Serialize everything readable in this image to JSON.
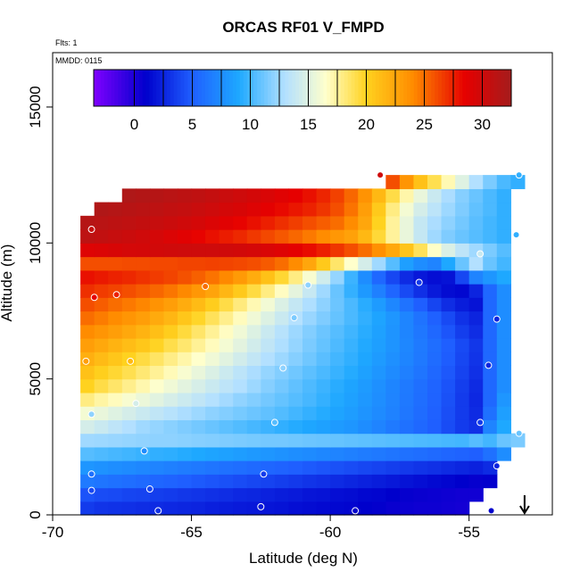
{
  "chart_data": {
    "type": "heatmap",
    "title": "ORCAS RF01 V_FMPD",
    "annotations": [
      "Flts: 1",
      "MMDD: 0115"
    ],
    "xlabel": "Latitude (deg N)",
    "ylabel": "Altitude (m)",
    "xlim": [
      -70,
      -52
    ],
    "ylim": [
      0,
      17000
    ],
    "x_ticks": [
      -70,
      -65,
      -60,
      -55
    ],
    "x_tick_labels": [
      "-70",
      "-65",
      "-60",
      "-55"
    ],
    "y_ticks": [
      0,
      5000,
      10000,
      15000
    ],
    "y_tick_labels": [
      "0",
      "5000",
      "10000",
      "15000"
    ],
    "colorbar": {
      "range": [
        -3.5,
        32.5
      ],
      "ticks": [
        0,
        5,
        10,
        15,
        20,
        25,
        30
      ],
      "tick_labels": [
        "0",
        "5",
        "10",
        "15",
        "20",
        "25",
        "30"
      ],
      "colors": [
        "#8000ff",
        "#0000cc",
        "#1f5fff",
        "#1ea8ff",
        "#b3e0ff",
        "#ffffcc",
        "#ffd21f",
        "#ff8c00",
        "#e60000",
        "#a51c1c"
      ],
      "color_positions": [
        -3.5,
        1.0,
        5.0,
        9.0,
        13.0,
        16.5,
        20.0,
        24.0,
        28.5,
        32.5
      ]
    },
    "grid_columns": [
      -68.75,
      -68.25,
      -67.75,
      -67.25,
      -66.75,
      -66.25,
      -65.75,
      -65.25,
      -64.75,
      -64.25,
      -63.75,
      -63.25,
      -62.75,
      -62.25,
      -61.75,
      -61.25,
      -60.75,
      -60.25,
      -59.75,
      -59.25,
      -58.75,
      -58.25,
      -57.75,
      -57.25,
      -56.75,
      -56.25,
      -55.75,
      -55.25,
      -54.75,
      -54.25,
      -53.75,
      -53.25
    ],
    "grid_rows": [
      250,
      750,
      1250,
      1750,
      2250,
      2750,
      3250,
      3750,
      4250,
      4750,
      5250,
      5750,
      6250,
      6750,
      7250,
      7750,
      8250,
      8750,
      9250,
      9750,
      10250,
      10750,
      11250,
      11750,
      12250
    ],
    "values": [
      [
        3.5,
        3.2,
        3.1,
        3.0,
        2.9,
        2.8,
        2.7,
        2.6,
        2.5,
        2.3,
        2.2,
        2.1,
        2.0,
        1.9,
        1.8,
        1.6,
        1.5,
        1.4,
        1.3,
        1.2,
        1.0,
        0.9,
        0.7,
        0.6,
        0.5,
        0.5,
        0.4,
        0.3,
        null,
        null,
        null,
        null
      ],
      [
        4.5,
        4.2,
        4.1,
        3.9,
        3.8,
        3.6,
        3.5,
        3.3,
        3.2,
        3.0,
        2.9,
        2.7,
        2.6,
        2.4,
        2.2,
        2.1,
        1.9,
        1.8,
        1.6,
        1.5,
        1.3,
        1.2,
        1.0,
        0.8,
        0.7,
        0.6,
        0.5,
        0.4,
        0.4,
        null,
        null,
        null
      ],
      [
        6.5,
        6.2,
        6.0,
        5.8,
        5.6,
        5.4,
        5.2,
        5.0,
        4.8,
        4.6,
        4.4,
        4.2,
        4.0,
        3.8,
        3.6,
        3.4,
        3.2,
        3.0,
        2.8,
        2.6,
        2.4,
        2.2,
        2.0,
        1.8,
        1.6,
        1.4,
        1.2,
        1.0,
        0.8,
        0.9,
        null,
        null
      ],
      [
        8.0,
        7.8,
        7.6,
        7.4,
        7.2,
        7.0,
        6.8,
        6.6,
        6.4,
        6.2,
        6.0,
        5.8,
        5.6,
        5.4,
        5.2,
        5.0,
        4.8,
        4.6,
        4.4,
        4.2,
        4.0,
        3.8,
        3.6,
        3.4,
        3.2,
        3.0,
        2.8,
        2.6,
        2.4,
        2.8,
        null,
        null
      ],
      [
        10.5,
        10.3,
        10.1,
        9.9,
        9.7,
        9.5,
        9.4,
        9.2,
        9.0,
        8.8,
        8.6,
        8.4,
        8.2,
        8.0,
        7.8,
        7.6,
        7.4,
        7.2,
        7.0,
        6.8,
        6.6,
        6.4,
        6.2,
        6.0,
        5.8,
        5.6,
        5.4,
        5.2,
        5.0,
        6.0,
        7.5,
        null
      ],
      [
        12.5,
        12.4,
        12.3,
        12.2,
        12.1,
        12.0,
        12.0,
        11.9,
        11.8,
        11.7,
        11.6,
        11.5,
        11.4,
        11.3,
        11.3,
        11.2,
        11.1,
        11.0,
        10.9,
        10.8,
        10.7,
        10.6,
        10.5,
        10.4,
        10.3,
        10.2,
        10.1,
        10.0,
        10.5,
        10.0,
        11.0,
        11.5
      ],
      [
        14.5,
        14.0,
        13.5,
        13.0,
        12.5,
        12.2,
        11.9,
        11.6,
        11.3,
        11.0,
        10.7,
        10.4,
        10.1,
        9.8,
        9.5,
        9.2,
        8.9,
        8.6,
        8.3,
        8.0,
        7.5,
        7.0,
        6.5,
        6.0,
        5.5,
        5.0,
        4.2,
        3.5,
        3.0,
        7.0,
        9.0,
        null
      ],
      [
        16.0,
        15.5,
        15.0,
        14.5,
        14.0,
        13.6,
        13.2,
        12.8,
        12.4,
        12.0,
        11.7,
        11.4,
        11.1,
        10.8,
        10.4,
        10.0,
        9.6,
        9.2,
        8.8,
        8.4,
        7.9,
        7.4,
        6.9,
        6.3,
        5.7,
        5.1,
        4.3,
        3.5,
        2.8,
        6.0,
        8.5,
        null
      ],
      [
        18.0,
        17.3,
        16.8,
        16.2,
        15.6,
        15.1,
        14.6,
        14.1,
        13.6,
        13.1,
        12.6,
        12.1,
        11.7,
        11.3,
        10.9,
        10.5,
        10.1,
        9.6,
        9.1,
        8.6,
        8.1,
        7.6,
        7.0,
        6.4,
        5.8,
        5.2,
        4.4,
        3.5,
        2.7,
        5.5,
        8.0,
        null
      ],
      [
        20.0,
        19.2,
        18.5,
        17.8,
        17.1,
        16.4,
        15.8,
        15.2,
        14.6,
        14.0,
        13.5,
        13.0,
        12.4,
        11.8,
        11.3,
        10.8,
        10.3,
        9.8,
        9.3,
        8.8,
        8.3,
        7.7,
        7.1,
        6.5,
        5.9,
        5.3,
        4.5,
        3.6,
        2.8,
        5.5,
        7.5,
        null
      ],
      [
        21.0,
        20.2,
        19.6,
        19.0,
        18.3,
        17.6,
        16.9,
        16.2,
        15.5,
        14.8,
        14.1,
        13.4,
        12.8,
        12.2,
        11.7,
        11.2,
        10.7,
        10.2,
        9.7,
        9.2,
        8.6,
        8.0,
        7.4,
        6.8,
        6.2,
        5.5,
        4.7,
        3.8,
        3.0,
        5.5,
        7.5,
        null
      ],
      [
        22.0,
        21.3,
        20.7,
        20.0,
        19.3,
        18.6,
        17.9,
        17.2,
        16.5,
        15.8,
        15.1,
        14.4,
        13.7,
        13.0,
        12.4,
        11.8,
        11.2,
        10.6,
        10.0,
        9.5,
        8.9,
        8.3,
        7.7,
        7.1,
        6.4,
        5.7,
        4.9,
        4.0,
        3.2,
        5.5,
        7.5,
        null
      ],
      [
        23.0,
        22.4,
        21.8,
        21.2,
        20.6,
        19.9,
        19.1,
        18.4,
        17.6,
        16.8,
        16.0,
        15.2,
        14.4,
        13.6,
        12.9,
        12.2,
        11.5,
        10.9,
        10.3,
        9.7,
        9.1,
        8.5,
        7.9,
        7.2,
        6.5,
        5.8,
        5.0,
        4.1,
        3.3,
        5.5,
        7.5,
        null
      ],
      [
        24.0,
        23.5,
        23.0,
        22.4,
        21.8,
        21.1,
        20.3,
        19.4,
        18.5,
        17.6,
        16.7,
        15.8,
        14.9,
        14.0,
        13.2,
        12.4,
        11.7,
        11.1,
        10.5,
        9.9,
        9.3,
        8.6,
        7.9,
        7.1,
        6.3,
        5.5,
        4.6,
        3.6,
        2.9,
        5.5,
        7.5,
        null
      ],
      [
        25.0,
        24.5,
        24.0,
        23.5,
        23.0,
        22.3,
        21.6,
        20.7,
        19.8,
        18.8,
        17.8,
        16.8,
        15.8,
        14.9,
        14.0,
        13.1,
        12.3,
        11.6,
        10.9,
        10.2,
        9.5,
        8.8,
        8.0,
        7.1,
        6.1,
        5.1,
        4.1,
        3.1,
        2.5,
        5.5,
        7.5,
        null
      ],
      [
        26.0,
        25.5,
        25.0,
        24.6,
        24.2,
        23.6,
        23.0,
        22.2,
        21.3,
        20.3,
        19.2,
        18.1,
        17.0,
        15.9,
        14.8,
        13.8,
        12.9,
        12.0,
        11.1,
        10.2,
        9.3,
        8.3,
        7.2,
        6.1,
        5.0,
        3.9,
        2.9,
        2.2,
        1.8,
        5.5,
        7.5,
        null
      ],
      [
        27.0,
        26.6,
        26.3,
        26.0,
        25.6,
        25.2,
        24.7,
        24.1,
        23.4,
        22.6,
        21.6,
        20.5,
        19.3,
        18.0,
        16.7,
        15.3,
        13.9,
        12.5,
        11.0,
        9.6,
        8.2,
        6.8,
        5.4,
        4.1,
        3.0,
        2.1,
        1.5,
        1.3,
        2.5,
        5.5,
        7.5,
        null
      ],
      [
        28.0,
        27.7,
        27.4,
        27.2,
        26.9,
        26.6,
        26.3,
        25.9,
        25.4,
        24.8,
        24.1,
        23.2,
        22.2,
        21.0,
        19.6,
        18.0,
        16.2,
        14.3,
        12.2,
        9.8,
        7.5,
        5.5,
        4.0,
        2.8,
        2.0,
        1.6,
        1.8,
        4.0,
        7.0,
        8.0,
        9.0,
        null
      ],
      [
        26.0,
        26.0,
        26.0,
        26.1,
        26.1,
        26.2,
        26.2,
        26.3,
        26.3,
        26.4,
        26.3,
        26.2,
        26.0,
        25.6,
        25.0,
        24.0,
        22.5,
        20.5,
        18.5,
        16.5,
        14.5,
        12.5,
        10.5,
        8.5,
        7.5,
        7.0,
        9.0,
        11.0,
        13.0,
        11.0,
        10.0,
        null
      ],
      [
        29.0,
        29.2,
        29.4,
        29.6,
        29.7,
        29.8,
        29.9,
        30.0,
        30.0,
        30.0,
        29.9,
        29.8,
        29.6,
        29.3,
        29.0,
        28.6,
        28.1,
        27.5,
        26.8,
        26.0,
        25.0,
        23.8,
        22.4,
        20.8,
        18.8,
        16.6,
        14.8,
        13.5,
        12.5,
        11.5,
        10.5,
        null
      ],
      [
        31.0,
        30.8,
        30.5,
        30.2,
        29.9,
        29.6,
        29.2,
        28.8,
        28.4,
        28.0,
        27.6,
        27.2,
        26.7,
        26.2,
        25.7,
        25.2,
        24.6,
        24.0,
        23.4,
        22.8,
        21.5,
        19.5,
        17.5,
        15.5,
        13.8,
        12.5,
        11.6,
        11.0,
        10.5,
        10.0,
        9.5,
        null
      ],
      [
        31.5,
        31.3,
        31.1,
        30.9,
        30.7,
        30.5,
        30.2,
        29.9,
        29.6,
        29.2,
        28.8,
        28.4,
        28.0,
        27.5,
        27.0,
        26.5,
        26.0,
        25.5,
        25.0,
        24.0,
        22.5,
        20.0,
        17.5,
        15.5,
        13.8,
        12.8,
        12.0,
        11.3,
        10.6,
        10.0,
        9.5,
        null
      ],
      [
        null,
        31.8,
        31.6,
        31.4,
        31.2,
        31.0,
        30.8,
        30.6,
        30.3,
        30.0,
        29.7,
        29.4,
        29.0,
        28.6,
        28.2,
        27.8,
        27.4,
        26.8,
        26.0,
        24.8,
        23.0,
        20.5,
        18.0,
        16.0,
        14.5,
        13.4,
        12.4,
        11.6,
        10.8,
        10.2,
        9.5,
        null
      ],
      [
        null,
        null,
        null,
        31.9,
        31.7,
        31.5,
        31.3,
        31.1,
        30.9,
        30.6,
        30.3,
        30.0,
        29.7,
        29.3,
        28.9,
        28.5,
        28.0,
        27.3,
        26.4,
        25.2,
        23.6,
        21.5,
        19.2,
        17.2,
        15.5,
        14.0,
        12.8,
        11.8,
        11.0,
        10.2,
        9.5,
        null
      ],
      [
        null,
        null,
        null,
        null,
        null,
        null,
        null,
        null,
        null,
        null,
        null,
        null,
        null,
        null,
        null,
        null,
        null,
        null,
        null,
        null,
        null,
        null,
        26.0,
        23.5,
        21.0,
        19.0,
        17.0,
        15.0,
        13.0,
        11.5,
        10.2,
        9.5
      ]
    ],
    "markers": [
      {
        "x": -68.8,
        "y": 5650,
        "value": 23.0
      },
      {
        "x": -68.6,
        "y": 10500,
        "value": 30.5
      },
      {
        "x": -68.5,
        "y": 8000,
        "value": 28.5
      },
      {
        "x": -68.6,
        "y": 3700,
        "value": 12.0
      },
      {
        "x": -68.6,
        "y": 1500,
        "value": 6.0
      },
      {
        "x": -68.6,
        "y": 900,
        "value": 4.0
      },
      {
        "x": -67.7,
        "y": 8100,
        "value": 27.5
      },
      {
        "x": -67.2,
        "y": 5650,
        "value": 21.5
      },
      {
        "x": -67.0,
        "y": 4100,
        "value": 14.5
      },
      {
        "x": -66.7,
        "y": 2350,
        "value": 7.5
      },
      {
        "x": -66.5,
        "y": 950,
        "value": 4.0
      },
      {
        "x": -66.2,
        "y": 150,
        "value": 3.0
      },
      {
        "x": -64.5,
        "y": 8400,
        "value": 25.0
      },
      {
        "x": -62.5,
        "y": 300,
        "value": 2.0
      },
      {
        "x": -62.4,
        "y": 1500,
        "value": 3.5
      },
      {
        "x": -62.0,
        "y": 3400,
        "value": 10.5
      },
      {
        "x": -61.7,
        "y": 5400,
        "value": 12.0
      },
      {
        "x": -61.3,
        "y": 7250,
        "value": 11.5
      },
      {
        "x": -60.8,
        "y": 8450,
        "value": 12.0
      },
      {
        "x": -59.1,
        "y": 150,
        "value": 1.0
      },
      {
        "x": -58.2,
        "y": 12500,
        "value": 30.0
      },
      {
        "x": -56.8,
        "y": 8550,
        "value": 3.5
      },
      {
        "x": -54.6,
        "y": 9600,
        "value": 14.0
      },
      {
        "x": -54.6,
        "y": 3400,
        "value": 3.5
      },
      {
        "x": -54.3,
        "y": 5500,
        "value": 2.5
      },
      {
        "x": -54.0,
        "y": 1800,
        "value": 2.5
      },
      {
        "x": -54.0,
        "y": 7200,
        "value": 2.5
      },
      {
        "x": -54.2,
        "y": 150,
        "value": 1.0
      },
      {
        "x": -53.3,
        "y": 10300,
        "value": 9.5
      },
      {
        "x": -53.2,
        "y": 12500,
        "value": 9.5
      },
      {
        "x": -53.2,
        "y": 3000,
        "value": 11.0
      }
    ],
    "arrow": {
      "x": -53.0,
      "direction": "down"
    },
    "grid": false,
    "legend_position": "top"
  }
}
